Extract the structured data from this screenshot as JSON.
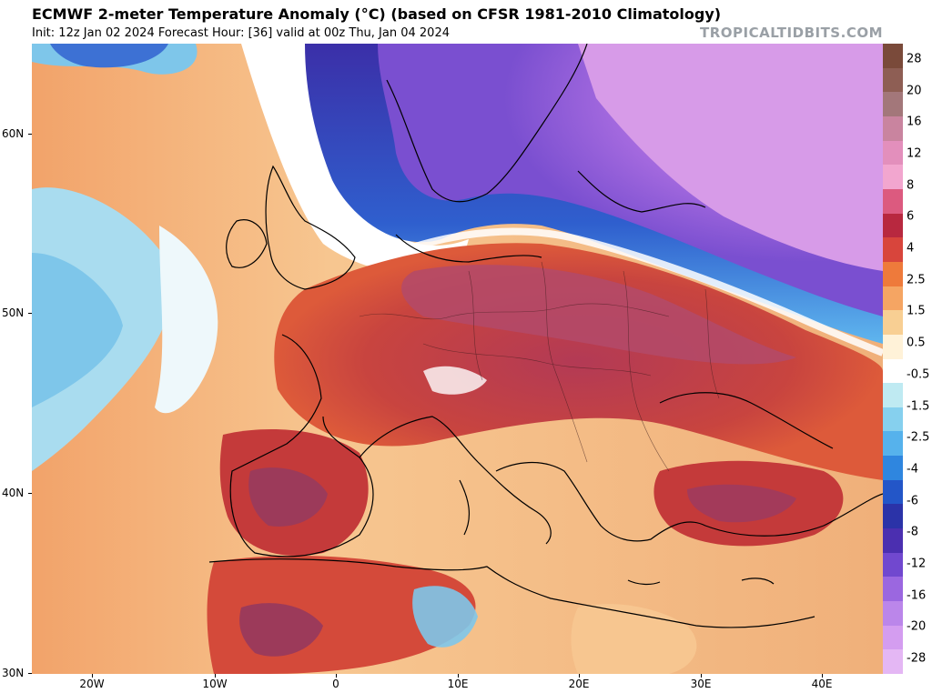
{
  "header": {
    "title": "ECMWF 2-meter Temperature Anomaly (°C) (based on CFSR 1981-2010 Climatology)",
    "subtitle": "Init: 12z Jan 02 2024   Forecast Hour: [36]   valid at 00z Thu, Jan 04 2024",
    "source": "TROPICALTIDBITS.COM"
  },
  "map": {
    "latitude_labels": [
      "60N",
      "50N",
      "40N",
      "30N"
    ],
    "longitude_labels": [
      "20W",
      "10W",
      "0",
      "10E",
      "20E",
      "30E",
      "40E"
    ]
  },
  "colorbar": {
    "labels": [
      "28",
      "20",
      "16",
      "12",
      "8",
      "6",
      "4",
      "2.5",
      "1.5",
      "0.5",
      "-0.5",
      "-1.5",
      "-2.5",
      "-4",
      "-6",
      "-8",
      "-12",
      "-16",
      "-20",
      "-28"
    ],
    "colors": [
      "#7a4a3a",
      "#8e5e54",
      "#a3777a",
      "#c9849f",
      "#e38fbc",
      "#f2a6cf",
      "#dc5a7f",
      "#b8283f",
      "#d8453c",
      "#ee7a3b",
      "#f5a563",
      "#f8cf93",
      "#fff2d8",
      "#ffffff",
      "#bfeaf2",
      "#86d0ee",
      "#56b2ec",
      "#2f86df",
      "#2356c8",
      "#2b33a8",
      "#4b2fb0",
      "#7148cf",
      "#9b67e0",
      "#bb86ea",
      "#d49df0",
      "#e4b7f4"
    ]
  }
}
